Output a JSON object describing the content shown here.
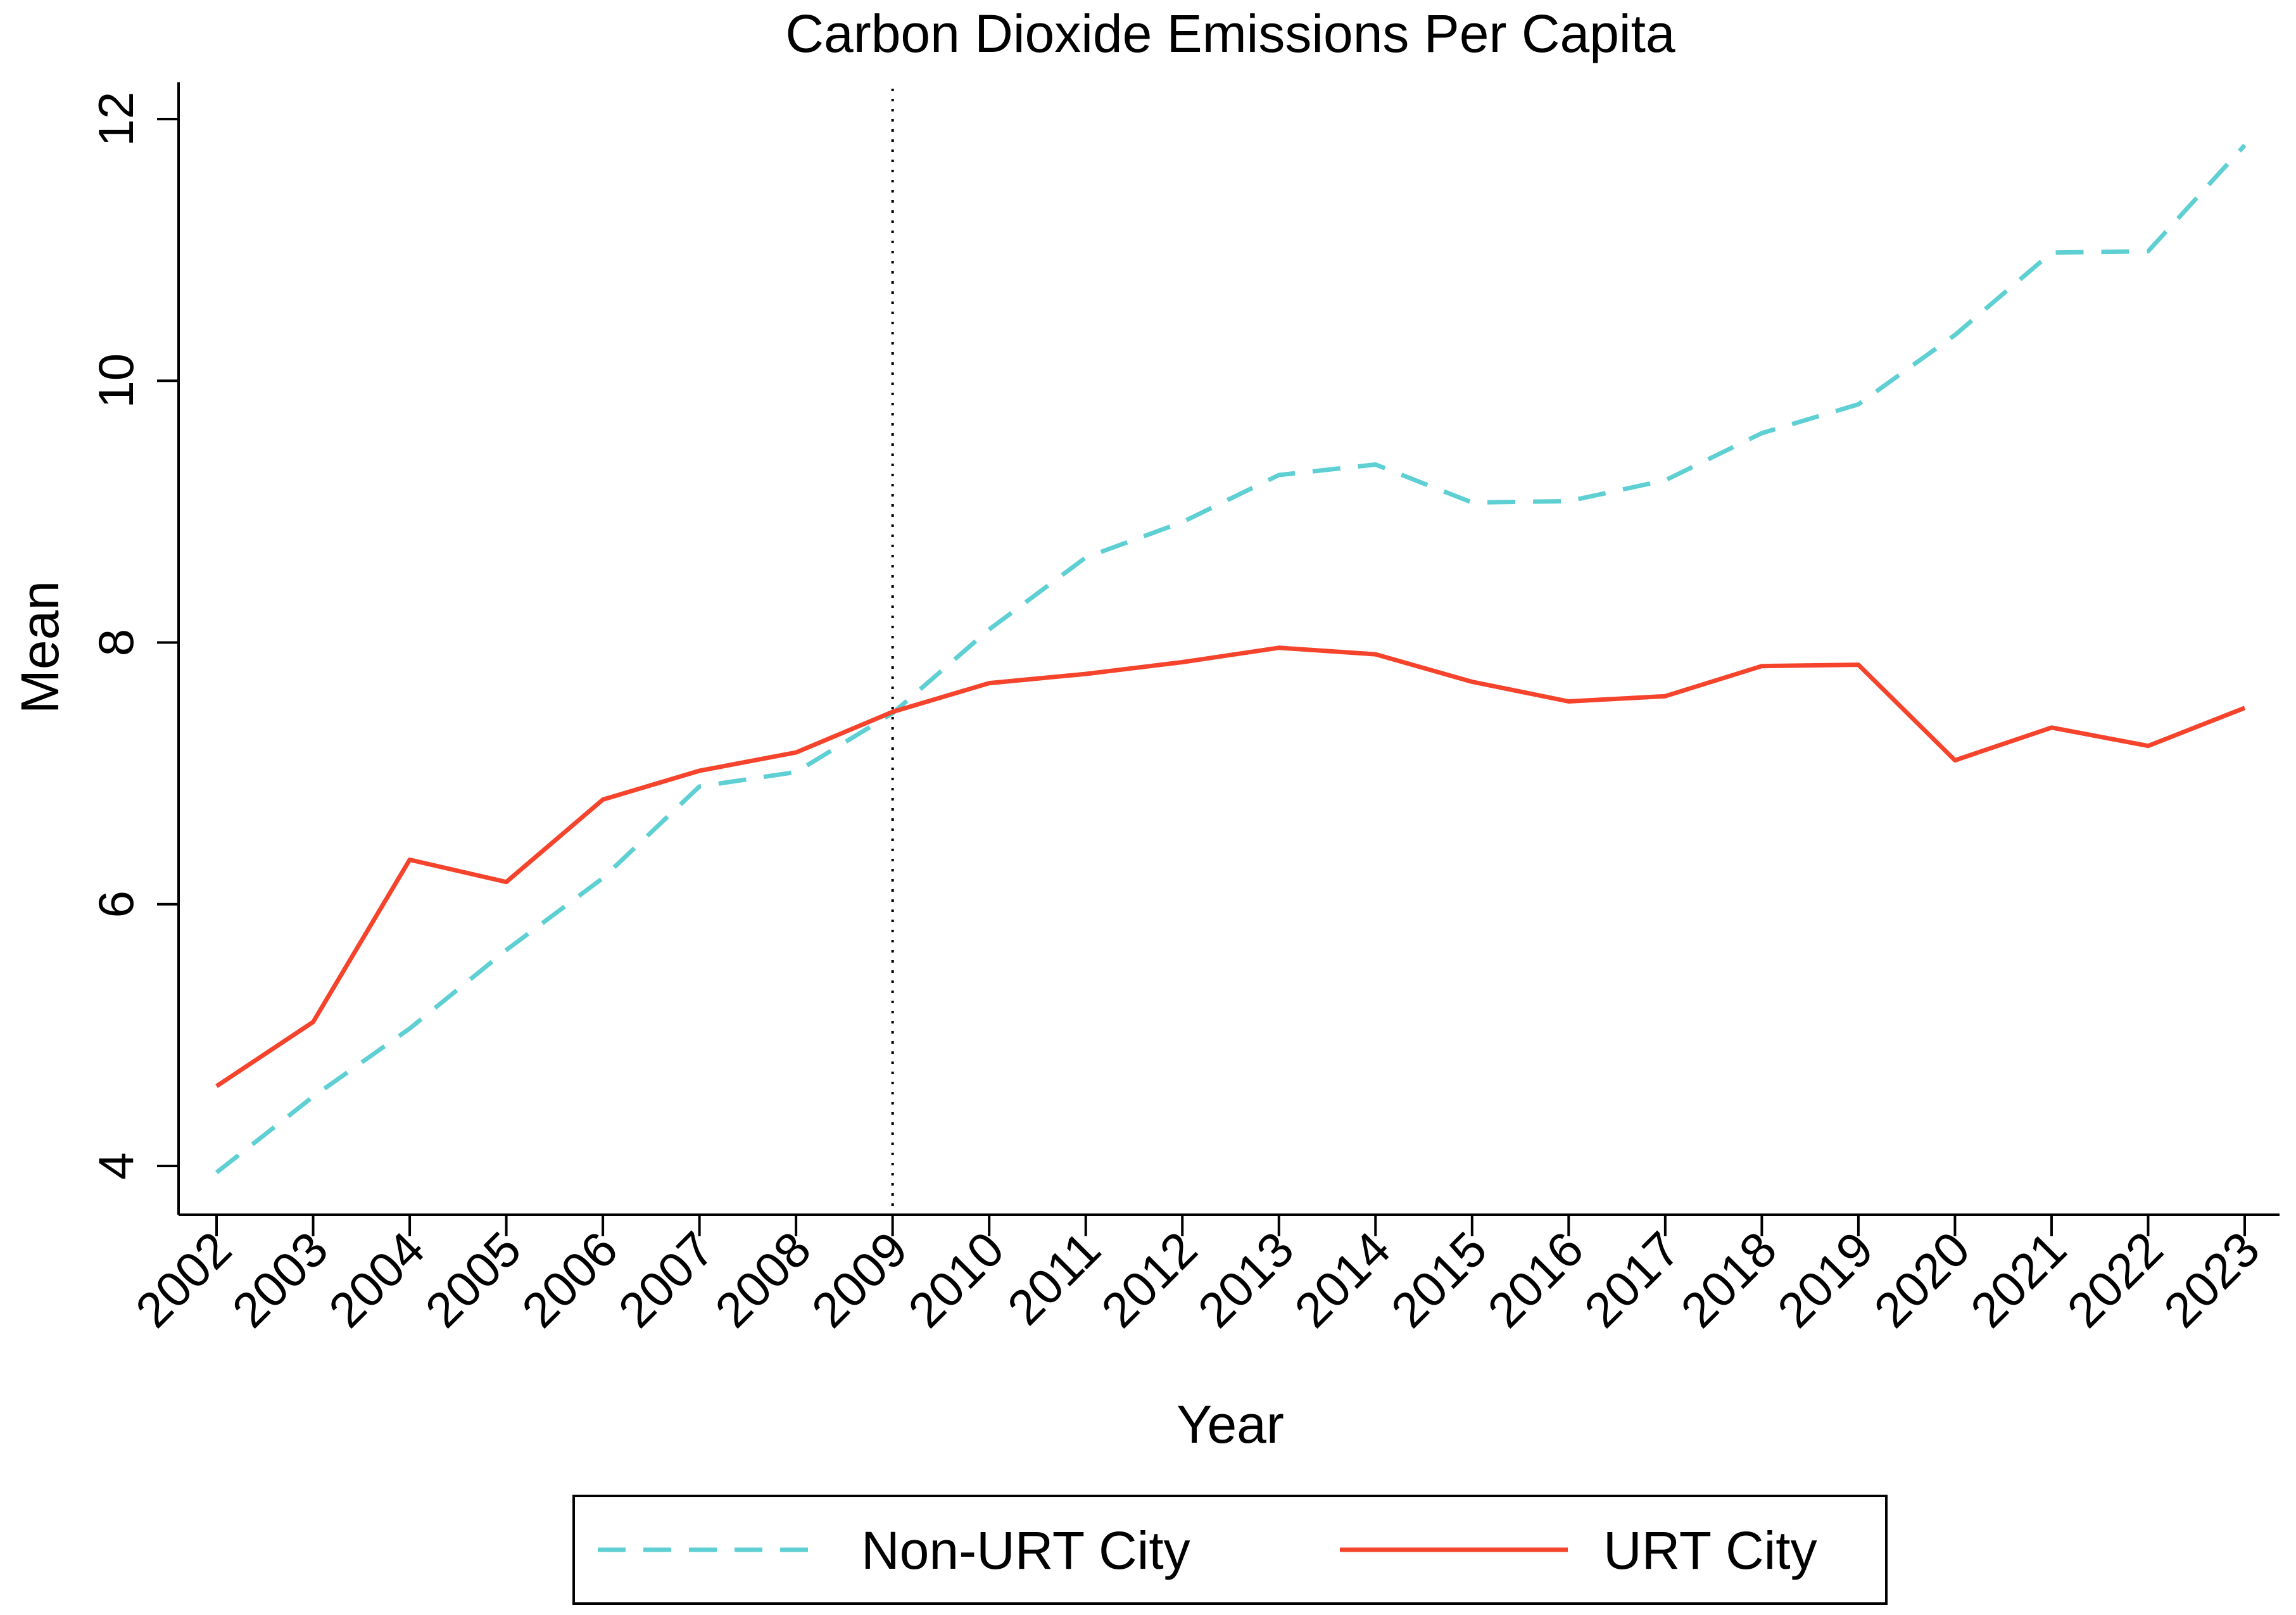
{
  "chart_data": {
    "type": "line",
    "title": "Carbon Dioxide Emissions Per Capita",
    "xlabel": "Year",
    "ylabel": "Mean",
    "ylim": [
      4,
      12
    ],
    "yticks": [
      4,
      6,
      8,
      10,
      12
    ],
    "x": [
      "2002",
      "2003",
      "2004",
      "2005",
      "2006",
      "2007",
      "2008",
      "2009",
      "2010",
      "2011",
      "2012",
      "2013",
      "2014",
      "2015",
      "2016",
      "2017",
      "2018",
      "2019",
      "2020",
      "2021",
      "2022",
      "2023"
    ],
    "reference_line": {
      "x": "2009",
      "style": "dotted"
    },
    "grid": false,
    "legend_position": "bottom",
    "series": [
      {
        "name": "Non-URT City",
        "style": "dashed",
        "color": "#5ecfd2",
        "values": [
          3.95,
          4.53,
          5.05,
          5.65,
          6.2,
          6.9,
          7.01,
          7.46,
          8.1,
          8.65,
          8.92,
          9.28,
          9.36,
          9.07,
          9.08,
          9.24,
          9.6,
          9.82,
          10.35,
          10.98,
          10.99,
          11.8
        ]
      },
      {
        "name": "URT City",
        "style": "solid",
        "color": "#f5432c",
        "values": [
          4.61,
          5.1,
          6.34,
          6.17,
          6.8,
          7.02,
          7.16,
          7.47,
          7.69,
          7.76,
          7.85,
          7.96,
          7.91,
          7.7,
          7.55,
          7.59,
          7.82,
          7.83,
          7.1,
          7.35,
          7.21,
          7.5
        ]
      }
    ]
  }
}
